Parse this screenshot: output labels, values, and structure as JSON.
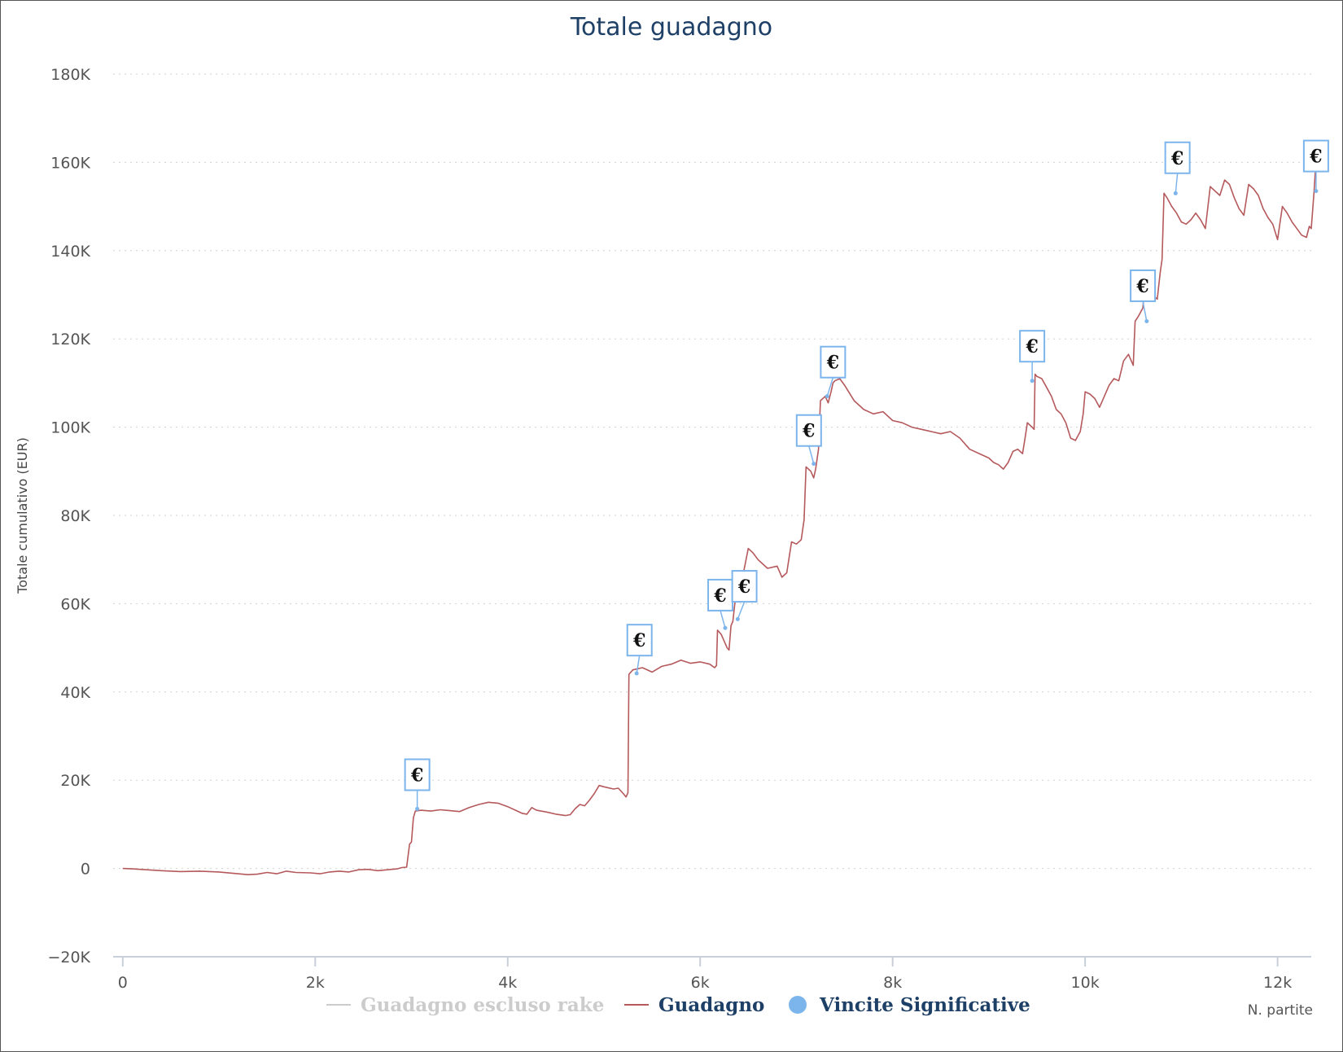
{
  "chart_data": {
    "type": "line",
    "title": "Totale guadagno",
    "xlabel": "N. partite",
    "ylabel": "Totale cumulativo (EUR)",
    "xlim": [
      -100,
      12350
    ],
    "ylim": [
      -20000,
      180000
    ],
    "x_ticks": [
      {
        "value": 0,
        "label": "0"
      },
      {
        "value": 2000,
        "label": "2k"
      },
      {
        "value": 4000,
        "label": "4k"
      },
      {
        "value": 6000,
        "label": "6k"
      },
      {
        "value": 8000,
        "label": "8k"
      },
      {
        "value": 10000,
        "label": "10k"
      },
      {
        "value": 12000,
        "label": "12k"
      }
    ],
    "y_ticks": [
      {
        "value": -20000,
        "label": "−20K"
      },
      {
        "value": 0,
        "label": "0"
      },
      {
        "value": 20000,
        "label": "20K"
      },
      {
        "value": 40000,
        "label": "40K"
      },
      {
        "value": 60000,
        "label": "60K"
      },
      {
        "value": 80000,
        "label": "80K"
      },
      {
        "value": 100000,
        "label": "100K"
      },
      {
        "value": 120000,
        "label": "120K"
      },
      {
        "value": 140000,
        "label": "140K"
      },
      {
        "value": 160000,
        "label": "160K"
      },
      {
        "value": 180000,
        "label": "180K"
      }
    ],
    "grid": "horizontal-dotted",
    "legend_position": "bottom",
    "legend": [
      {
        "name": "Guadagno escluso rake",
        "color": "#cccccc",
        "symbol": "line",
        "text_color": "#cccccc"
      },
      {
        "name": "Guadagno",
        "color": "#b5595c",
        "symbol": "line",
        "text_color": "#1e3f66"
      },
      {
        "name": "Vincite Significative",
        "color": "#7cb5ec",
        "symbol": "circle",
        "text_color": "#1e3f66"
      }
    ],
    "series": [
      {
        "name": "Guadagno",
        "color": "#b5595c",
        "points": [
          [
            0,
            0
          ],
          [
            100,
            -100
          ],
          [
            250,
            -300
          ],
          [
            400,
            -500
          ],
          [
            600,
            -700
          ],
          [
            800,
            -600
          ],
          [
            1000,
            -800
          ],
          [
            1150,
            -1100
          ],
          [
            1300,
            -1400
          ],
          [
            1400,
            -1300
          ],
          [
            1500,
            -900
          ],
          [
            1600,
            -1200
          ],
          [
            1700,
            -600
          ],
          [
            1800,
            -900
          ],
          [
            1950,
            -1000
          ],
          [
            2050,
            -1200
          ],
          [
            2150,
            -800
          ],
          [
            2250,
            -600
          ],
          [
            2350,
            -800
          ],
          [
            2450,
            -300
          ],
          [
            2550,
            -200
          ],
          [
            2650,
            -500
          ],
          [
            2750,
            -300
          ],
          [
            2850,
            -100
          ],
          [
            2900,
            200
          ],
          [
            2950,
            300
          ],
          [
            2980,
            5500
          ],
          [
            3000,
            6000
          ],
          [
            3020,
            11500
          ],
          [
            3040,
            13000
          ],
          [
            3100,
            13200
          ],
          [
            3200,
            13000
          ],
          [
            3300,
            13300
          ],
          [
            3400,
            13100
          ],
          [
            3500,
            12900
          ],
          [
            3600,
            13800
          ],
          [
            3700,
            14500
          ],
          [
            3800,
            15000
          ],
          [
            3900,
            14800
          ],
          [
            4000,
            14000
          ],
          [
            4100,
            13000
          ],
          [
            4150,
            12500
          ],
          [
            4200,
            12300
          ],
          [
            4250,
            13800
          ],
          [
            4300,
            13200
          ],
          [
            4400,
            12800
          ],
          [
            4500,
            12300
          ],
          [
            4600,
            12000
          ],
          [
            4650,
            12200
          ],
          [
            4700,
            13500
          ],
          [
            4750,
            14500
          ],
          [
            4800,
            14200
          ],
          [
            4850,
            15500
          ],
          [
            4900,
            17000
          ],
          [
            4950,
            18800
          ],
          [
            5000,
            18500
          ],
          [
            5100,
            18000
          ],
          [
            5150,
            18200
          ],
          [
            5200,
            17000
          ],
          [
            5230,
            16200
          ],
          [
            5250,
            17200
          ],
          [
            5260,
            44000
          ],
          [
            5300,
            45000
          ],
          [
            5400,
            45500
          ],
          [
            5500,
            44500
          ],
          [
            5600,
            45800
          ],
          [
            5700,
            46300
          ],
          [
            5800,
            47200
          ],
          [
            5900,
            46500
          ],
          [
            6000,
            46800
          ],
          [
            6100,
            46300
          ],
          [
            6150,
            45500
          ],
          [
            6170,
            46000
          ],
          [
            6180,
            54000
          ],
          [
            6220,
            53000
          ],
          [
            6280,
            50000
          ],
          [
            6300,
            49500
          ],
          [
            6320,
            55000
          ],
          [
            6340,
            56000
          ],
          [
            6370,
            62000
          ],
          [
            6400,
            63000
          ],
          [
            6450,
            67000
          ],
          [
            6500,
            72500
          ],
          [
            6550,
            71500
          ],
          [
            6600,
            70000
          ],
          [
            6650,
            69000
          ],
          [
            6700,
            68000
          ],
          [
            6800,
            68500
          ],
          [
            6850,
            66000
          ],
          [
            6900,
            67000
          ],
          [
            6950,
            74000
          ],
          [
            7000,
            73500
          ],
          [
            7050,
            74500
          ],
          [
            7080,
            79000
          ],
          [
            7100,
            91000
          ],
          [
            7150,
            90000
          ],
          [
            7180,
            88500
          ],
          [
            7200,
            90500
          ],
          [
            7230,
            95000
          ],
          [
            7250,
            106000
          ],
          [
            7300,
            107000
          ],
          [
            7330,
            105500
          ],
          [
            7360,
            108000
          ],
          [
            7380,
            110000
          ],
          [
            7400,
            110500
          ],
          [
            7450,
            111000
          ],
          [
            7500,
            109500
          ],
          [
            7600,
            106000
          ],
          [
            7700,
            104000
          ],
          [
            7800,
            103000
          ],
          [
            7900,
            103500
          ],
          [
            8000,
            101500
          ],
          [
            8100,
            101000
          ],
          [
            8200,
            100000
          ],
          [
            8300,
            99500
          ],
          [
            8400,
            99000
          ],
          [
            8500,
            98500
          ],
          [
            8600,
            99000
          ],
          [
            8700,
            97500
          ],
          [
            8800,
            95000
          ],
          [
            8900,
            94000
          ],
          [
            9000,
            93000
          ],
          [
            9050,
            92000
          ],
          [
            9100,
            91500
          ],
          [
            9150,
            90500
          ],
          [
            9200,
            92000
          ],
          [
            9250,
            94500
          ],
          [
            9300,
            95000
          ],
          [
            9350,
            94000
          ],
          [
            9380,
            98000
          ],
          [
            9400,
            101000
          ],
          [
            9450,
            100000
          ],
          [
            9470,
            99500
          ],
          [
            9480,
            112000
          ],
          [
            9500,
            111500
          ],
          [
            9550,
            111000
          ],
          [
            9600,
            109000
          ],
          [
            9650,
            107000
          ],
          [
            9700,
            104000
          ],
          [
            9750,
            103000
          ],
          [
            9800,
            101000
          ],
          [
            9850,
            97500
          ],
          [
            9900,
            97000
          ],
          [
            9950,
            99000
          ],
          [
            9980,
            103000
          ],
          [
            10000,
            108000
          ],
          [
            10050,
            107500
          ],
          [
            10100,
            106500
          ],
          [
            10150,
            104500
          ],
          [
            10200,
            107000
          ],
          [
            10250,
            109500
          ],
          [
            10300,
            111000
          ],
          [
            10350,
            110500
          ],
          [
            10400,
            115000
          ],
          [
            10450,
            116500
          ],
          [
            10500,
            114000
          ],
          [
            10520,
            124000
          ],
          [
            10550,
            125000
          ],
          [
            10600,
            127000
          ],
          [
            10620,
            132000
          ],
          [
            10650,
            133000
          ],
          [
            10700,
            130000
          ],
          [
            10750,
            129000
          ],
          [
            10780,
            135000
          ],
          [
            10800,
            138000
          ],
          [
            10820,
            153000
          ],
          [
            10850,
            152000
          ],
          [
            10900,
            150000
          ],
          [
            10950,
            148500
          ],
          [
            11000,
            146500
          ],
          [
            11050,
            146000
          ],
          [
            11100,
            147000
          ],
          [
            11150,
            148500
          ],
          [
            11200,
            147000
          ],
          [
            11250,
            145000
          ],
          [
            11300,
            154500
          ],
          [
            11350,
            153500
          ],
          [
            11400,
            152500
          ],
          [
            11450,
            156000
          ],
          [
            11500,
            155000
          ],
          [
            11550,
            152000
          ],
          [
            11600,
            149500
          ],
          [
            11650,
            148000
          ],
          [
            11700,
            155000
          ],
          [
            11750,
            154000
          ],
          [
            11800,
            152500
          ],
          [
            11850,
            149500
          ],
          [
            11900,
            147500
          ],
          [
            11950,
            146000
          ],
          [
            12000,
            142500
          ],
          [
            12050,
            150000
          ],
          [
            12100,
            148500
          ],
          [
            12150,
            146500
          ],
          [
            12200,
            145000
          ],
          [
            12250,
            143500
          ],
          [
            12300,
            143000
          ],
          [
            12330,
            145500
          ],
          [
            12350,
            145000
          ],
          [
            12380,
            153500
          ],
          [
            12400,
            160500
          ]
        ]
      },
      {
        "name": "Vincite Significative",
        "color": "#7cb5ec",
        "points": [
          [
            3060,
            13500
          ],
          [
            5340,
            44200
          ],
          [
            6260,
            54500
          ],
          [
            6390,
            56500
          ],
          [
            7180,
            91700
          ],
          [
            7320,
            107000
          ],
          [
            9450,
            110500
          ],
          [
            10640,
            124000
          ],
          [
            10940,
            153000
          ],
          [
            12400,
            153500
          ]
        ],
        "flags": [
          {
            "x": 3060,
            "y": 13500,
            "label": "€",
            "flag_x": 3060,
            "flag_y": 20500
          },
          {
            "x": 5340,
            "y": 44200,
            "label": "€",
            "flag_x": 5370,
            "flag_y": 51000
          },
          {
            "x": 6260,
            "y": 54500,
            "label": "€",
            "flag_x": 6210,
            "flag_y": 61200
          },
          {
            "x": 6390,
            "y": 56500,
            "label": "€",
            "flag_x": 6460,
            "flag_y": 63200
          },
          {
            "x": 7180,
            "y": 91700,
            "label": "€",
            "flag_x": 7130,
            "flag_y": 98500
          },
          {
            "x": 7320,
            "y": 107000,
            "label": "€",
            "flag_x": 7380,
            "flag_y": 114000
          },
          {
            "x": 9450,
            "y": 110500,
            "label": "€",
            "flag_x": 9450,
            "flag_y": 117600
          },
          {
            "x": 10640,
            "y": 124000,
            "label": "€",
            "flag_x": 10600,
            "flag_y": 131300
          },
          {
            "x": 10940,
            "y": 153000,
            "label": "€",
            "flag_x": 10960,
            "flag_y": 160300
          },
          {
            "x": 12400,
            "y": 153500,
            "label": "€",
            "flag_x": 12400,
            "flag_y": 160700
          }
        ]
      }
    ]
  }
}
